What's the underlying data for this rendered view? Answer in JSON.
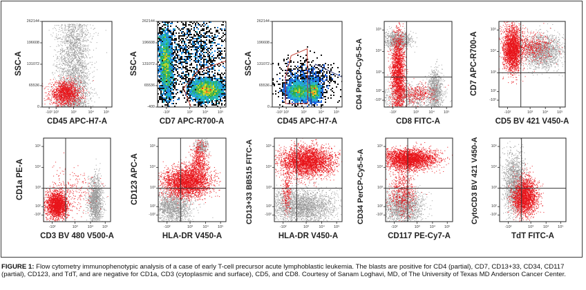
{
  "figure": {
    "caption_label": "FIGURE 1:",
    "caption_text": " Flow cytometry immunophenotypic analysis of a case of early T-cell precursor acute lymphoblastic leukemia. The blasts are positive for CD4 (partial), CD7, CD13+33, CD34, CD117 (partial), CD123, and TdT, and are negative for CD1a, CD3 (cytoplasmic and surface), CD5, and CD8. Courtesy of Sanam Loghavi, MD, of The University of Texas MD Anderson Cancer Center.",
    "colors": {
      "blasts": "#e8141a",
      "other_events": "#9a9a9a",
      "gate_red": "#c0392b",
      "gate_navy": "#2b2f6b",
      "quadrant": "#333333"
    }
  },
  "chart_data": [
    {
      "type": "scatter",
      "id": "p1",
      "title": "",
      "xlabel": "CD45 APC-H7-A",
      "ylabel": "SSC-A",
      "style": "gray-red",
      "x_ticks": [
        "-10²",
        "10²",
        "10³",
        "10⁴",
        "10⁵"
      ],
      "y_ticks": [
        "0",
        "65536",
        "131072",
        "196608",
        "262144"
      ],
      "ylim": [
        0,
        262144
      ],
      "y_scale": "linear",
      "x_scale": "logicle",
      "populations": [
        {
          "name": "other",
          "color": "other",
          "n": 2600,
          "cx": 0.45,
          "cy": 0.45,
          "sx": 0.12,
          "sy": 0.35,
          "shape": "column"
        },
        {
          "name": "blasts",
          "color": "blasts",
          "n": 1400,
          "cx": 0.33,
          "cy": 0.16,
          "sx": 0.11,
          "sy": 0.07
        }
      ]
    },
    {
      "type": "scatter",
      "id": "p2",
      "xlabel": "CD7 APC-R700-A",
      "ylabel": "SSC-A",
      "style": "density",
      "x_ticks": [
        "-10²",
        "10³",
        "10⁴",
        "10⁵"
      ],
      "y_ticks": [
        "-400",
        "65536",
        "131072",
        "196608",
        "262144"
      ],
      "ylim": [
        -400,
        262144
      ],
      "populations": [
        {
          "name": "myeloid-like",
          "n": 2200,
          "cx": 0.12,
          "cy": 0.5,
          "sx": 0.05,
          "sy": 0.22,
          "tilt": -0.6
        },
        {
          "name": "cd7-positive",
          "n": 2400,
          "cx": 0.72,
          "cy": 0.2,
          "sx": 0.13,
          "sy": 0.07
        },
        {
          "name": "background",
          "n": 1500,
          "cx": 0.55,
          "cy": 0.65,
          "sx": 0.3,
          "sy": 0.28
        }
      ],
      "gates": [
        {
          "color": "gate_red",
          "points": [
            [
              1.05,
              0.55
            ],
            [
              0.6,
              0.43
            ],
            [
              0.38,
              0.22
            ],
            [
              0.5,
              -0.02
            ]
          ]
        }
      ]
    },
    {
      "type": "scatter",
      "id": "p3",
      "xlabel": "CD45 APC-H7-A",
      "ylabel": "SSC-A",
      "style": "density",
      "x_ticks": [
        "-10²",
        "10²",
        "10³",
        "10⁴",
        "10⁵"
      ],
      "y_ticks": [
        "0",
        "65536",
        "131072",
        "196608",
        "262144"
      ],
      "ylim": [
        0,
        262144
      ],
      "populations": [
        {
          "name": "blasts",
          "n": 1800,
          "cx": 0.37,
          "cy": 0.18,
          "sx": 0.09,
          "sy": 0.06
        },
        {
          "name": "lymphocytes",
          "n": 1300,
          "cx": 0.59,
          "cy": 0.18,
          "sx": 0.05,
          "sy": 0.06
        },
        {
          "name": "background",
          "n": 900,
          "cx": 0.5,
          "cy": 0.3,
          "sx": 0.2,
          "sy": 0.12
        }
      ],
      "gates": [
        {
          "color": "gate_red",
          "points": [
            [
              0.27,
              0.6
            ],
            [
              0.5,
              0.68
            ],
            [
              0.51,
              0.04
            ],
            [
              0.19,
              0.04
            ],
            [
              0.19,
              0.35
            ],
            [
              0.27,
              0.6
            ]
          ]
        },
        {
          "color": "gate_navy",
          "points": [
            [
              1.05,
              0.33
            ],
            [
              0.62,
              0.5
            ],
            [
              0.53,
              0.35
            ],
            [
              0.57,
              -0.05
            ]
          ]
        }
      ]
    },
    {
      "type": "scatter",
      "id": "p4",
      "xlabel": "CD8 FITC-A",
      "ylabel": "CD4 PerCP-Cy5-5-A",
      "style": "gray-red",
      "quadrant": [
        0.33,
        0.35
      ],
      "x_ticks": [
        "-10²",
        "10³",
        "10⁴",
        "10⁵"
      ],
      "y_ticks": [
        "-10²",
        "10²",
        "10³",
        "10⁴",
        "10⁵"
      ],
      "populations": [
        {
          "name": "other-cd4",
          "color": "other",
          "n": 900,
          "cx": 0.2,
          "cy": 0.78,
          "sx": 0.1,
          "sy": 0.05
        },
        {
          "name": "other-cd8",
          "color": "other",
          "n": 900,
          "cx": 0.75,
          "cy": 0.2,
          "sx": 0.05,
          "sy": 0.12
        },
        {
          "name": "other-neg",
          "color": "other",
          "n": 700,
          "cx": 0.35,
          "cy": 0.12,
          "sx": 0.25,
          "sy": 0.08
        },
        {
          "name": "blasts",
          "color": "blasts",
          "n": 2200,
          "cx": 0.2,
          "cy": 0.38,
          "sx": 0.05,
          "sy": 0.25
        },
        {
          "name": "blasts-tail",
          "color": "blasts",
          "n": 400,
          "cx": 0.45,
          "cy": 0.15,
          "sx": 0.15,
          "sy": 0.06
        }
      ]
    },
    {
      "type": "scatter",
      "id": "p5",
      "xlabel": "CD5 BV 421 V450-A",
      "ylabel": "CD7 APC-R700-A",
      "style": "gray-red",
      "quadrant": [
        0.33,
        0.4
      ],
      "x_ticks": [
        "-10²",
        "10³",
        "10⁴",
        "10⁵"
      ],
      "y_ticks": [
        "-10²",
        "10²",
        "10³",
        "10⁴",
        "10⁵"
      ],
      "populations": [
        {
          "name": "other",
          "color": "other",
          "n": 1600,
          "cx": 0.65,
          "cy": 0.65,
          "sx": 0.15,
          "sy": 0.1
        },
        {
          "name": "blasts",
          "color": "blasts",
          "n": 2400,
          "cx": 0.2,
          "cy": 0.68,
          "sx": 0.07,
          "sy": 0.13
        },
        {
          "name": "blasts-tail",
          "color": "blasts",
          "n": 500,
          "cx": 0.5,
          "cy": 0.7,
          "sx": 0.15,
          "sy": 0.08
        }
      ]
    },
    {
      "type": "scatter",
      "id": "p6",
      "xlabel": "CD3 BV 480 V500-A",
      "ylabel": "CD1a PE-A",
      "style": "gray-red",
      "quadrant": [
        0.33,
        0.4
      ],
      "x_ticks": [
        "-10²",
        "10³",
        "10⁴",
        "10⁵"
      ],
      "y_ticks": [
        "-10²",
        "10²",
        "10³",
        "10⁴",
        "10⁵"
      ],
      "populations": [
        {
          "name": "other",
          "color": "other",
          "n": 1300,
          "cx": 0.77,
          "cy": 0.25,
          "sx": 0.05,
          "sy": 0.14
        },
        {
          "name": "blasts",
          "color": "blasts",
          "n": 2200,
          "cx": 0.2,
          "cy": 0.2,
          "sx": 0.08,
          "sy": 0.08
        },
        {
          "name": "blasts-sparse",
          "color": "blasts",
          "n": 250,
          "cx": 0.4,
          "cy": 0.35,
          "sx": 0.2,
          "sy": 0.15
        }
      ]
    },
    {
      "type": "scatter",
      "id": "p7",
      "xlabel": "HLA-DR V450-A",
      "ylabel": "CD123 APC-A",
      "style": "gray-red",
      "quadrant": [
        0.33,
        0.4
      ],
      "x_ticks": [
        "-10²",
        "10³",
        "10⁴",
        "10⁵"
      ],
      "y_ticks": [
        "-10²",
        "10²",
        "10³",
        "10⁴",
        "10⁵"
      ],
      "populations": [
        {
          "name": "other",
          "color": "other",
          "n": 1400,
          "cx": 0.22,
          "cy": 0.18,
          "sx": 0.14,
          "sy": 0.1
        },
        {
          "name": "other-hi",
          "color": "other",
          "n": 300,
          "cx": 0.63,
          "cy": 0.9,
          "sx": 0.05,
          "sy": 0.04
        },
        {
          "name": "blasts",
          "color": "blasts",
          "n": 3000,
          "cx": 0.42,
          "cy": 0.48,
          "sx": 0.17,
          "sy": 0.09
        },
        {
          "name": "blasts-arm",
          "color": "blasts",
          "n": 600,
          "cx": 0.6,
          "cy": 0.72,
          "sx": 0.06,
          "sy": 0.12
        }
      ]
    },
    {
      "type": "scatter",
      "id": "p8",
      "xlabel": "HLA-DR V450-A",
      "ylabel": "CD13+33 BB515 FITC-A",
      "style": "gray-red",
      "quadrant": [
        0.33,
        0.4
      ],
      "x_ticks": [
        "-10²",
        "10³",
        "10⁴",
        "10⁵"
      ],
      "y_ticks": [
        "-10²",
        "10²",
        "10³",
        "10⁴",
        "10⁵"
      ],
      "populations": [
        {
          "name": "other",
          "color": "other",
          "n": 2400,
          "cx": 0.4,
          "cy": 0.18,
          "sx": 0.25,
          "sy": 0.1
        },
        {
          "name": "blasts",
          "color": "blasts",
          "n": 3200,
          "cx": 0.48,
          "cy": 0.72,
          "sx": 0.2,
          "sy": 0.09
        },
        {
          "name": "blasts-tail",
          "color": "blasts",
          "n": 250,
          "cx": 0.18,
          "cy": 0.35,
          "sx": 0.03,
          "sy": 0.15
        }
      ]
    },
    {
      "type": "scatter",
      "id": "p9",
      "xlabel": "CD117 PE-Cy7-A",
      "ylabel": "CD34 PerCP-Cy5-5-A",
      "style": "gray-red",
      "quadrant": [
        0.33,
        0.4
      ],
      "x_ticks": [
        "-10²",
        "10³",
        "10⁴",
        "10⁵"
      ],
      "y_ticks": [
        "-10²",
        "10²",
        "10³",
        "10⁴",
        "10⁵"
      ],
      "populations": [
        {
          "name": "other",
          "color": "other",
          "n": 1600,
          "cx": 0.25,
          "cy": 0.18,
          "sx": 0.15,
          "sy": 0.1
        },
        {
          "name": "blasts",
          "color": "blasts",
          "n": 3000,
          "cx": 0.35,
          "cy": 0.75,
          "sx": 0.2,
          "sy": 0.06
        },
        {
          "name": "blasts-low",
          "color": "blasts",
          "n": 600,
          "cx": 0.25,
          "cy": 0.35,
          "sx": 0.1,
          "sy": 0.15
        }
      ]
    },
    {
      "type": "scatter",
      "id": "p10",
      "xlabel": "TdT FITC-A",
      "ylabel": "CytoCD3 BV 421 V450-A",
      "style": "gray-red",
      "quadrant": [
        0.33,
        0.4
      ],
      "x_ticks": [
        "-10²",
        "10³",
        "10⁴",
        "10⁵"
      ],
      "y_ticks": [
        "-10²",
        "10²",
        "10³",
        "10⁴",
        "10⁵"
      ],
      "populations": [
        {
          "name": "other",
          "color": "other",
          "n": 1500,
          "cx": 0.22,
          "cy": 0.45,
          "sx": 0.08,
          "sy": 0.18
        },
        {
          "name": "blasts",
          "color": "blasts",
          "n": 2200,
          "cx": 0.38,
          "cy": 0.3,
          "sx": 0.09,
          "sy": 0.11
        }
      ]
    }
  ]
}
